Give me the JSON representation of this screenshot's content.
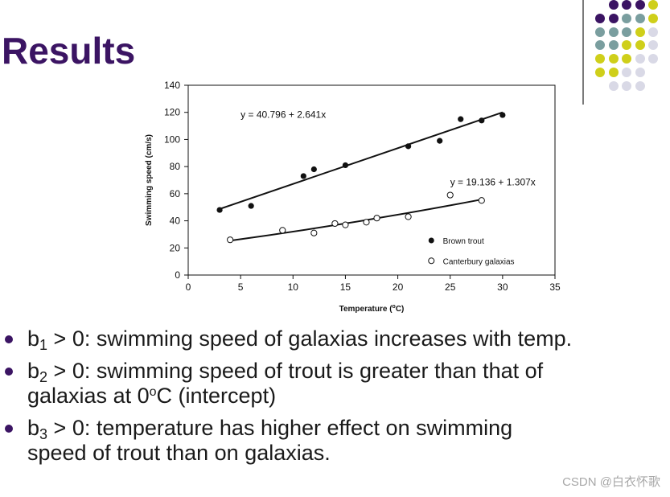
{
  "slide": {
    "title": "Results",
    "watermark": "CSDN @白衣怀歌",
    "palette": [
      "#3b1463",
      "#7a9e9f",
      "#cfcf1a",
      "#d9d9e6"
    ]
  },
  "bullets": [
    {
      "pre": "b",
      "sub": "1",
      "text": " > 0: swimming speed of galaxias increases with temp."
    },
    {
      "pre": "b",
      "sub": "2",
      "text": " > 0: swimming speed of trout is greater than that of",
      "line2_pre": "galaxias at 0",
      "line2_sup": "o",
      "line2_post": "C (intercept)"
    },
    {
      "pre": "b",
      "sub": "3",
      "text": " > 0: temperature has higher effect on swimming",
      "line2": "speed of trout than on galaxias."
    }
  ],
  "chart_data": {
    "type": "scatter",
    "xlabel_pre": "Temperature (",
    "xlabel_sup": "o",
    "xlabel_post": "C)",
    "ylabel": "Swimming speed (cm/s)",
    "xlim": [
      0,
      35
    ],
    "ylim": [
      0,
      140
    ],
    "xticks": [
      0,
      5,
      10,
      15,
      20,
      25,
      30,
      35
    ],
    "yticks": [
      0,
      20,
      40,
      60,
      80,
      100,
      120,
      140
    ],
    "legend_position": "bottom-right",
    "series": [
      {
        "name": "Brown trout",
        "marker": "filled",
        "points": [
          [
            3,
            48
          ],
          [
            6,
            51
          ],
          [
            11,
            73
          ],
          [
            12,
            78
          ],
          [
            15,
            81
          ],
          [
            21,
            95
          ],
          [
            24,
            99
          ],
          [
            26,
            115
          ],
          [
            28,
            114
          ],
          [
            30,
            118
          ]
        ],
        "fit": {
          "intercept": 40.796,
          "slope": 2.641,
          "x_range": [
            3,
            30
          ],
          "label": "y = 40.796 + 2.641x"
        }
      },
      {
        "name": "Canterbury galaxias",
        "marker": "open",
        "points": [
          [
            4,
            26
          ],
          [
            9,
            33
          ],
          [
            12,
            31
          ],
          [
            14,
            38
          ],
          [
            15,
            37
          ],
          [
            17,
            39
          ],
          [
            18,
            42
          ],
          [
            21,
            43
          ],
          [
            25,
            59
          ],
          [
            28,
            55
          ]
        ],
        "fit": {
          "intercept": 19.136,
          "slope": 1.307,
          "x_range": [
            4,
            28
          ],
          "label": "y = 19.136 + 1.307x"
        }
      }
    ]
  }
}
